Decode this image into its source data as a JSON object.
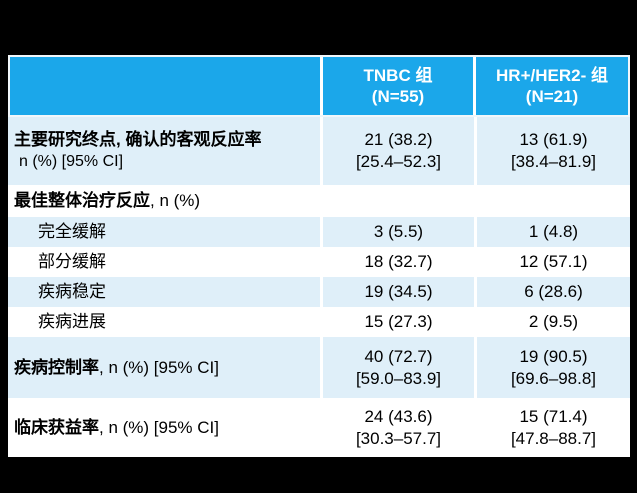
{
  "colors": {
    "page_bg": "#000000",
    "header_bg": "#1BA7EA",
    "header_text": "#FFFFFF",
    "shade_bg": "#DFEFF9",
    "text": "#000000"
  },
  "table": {
    "header": {
      "col1": "",
      "col2": {
        "line1": "TNBC 组",
        "line2": "(N=55)"
      },
      "col3": {
        "line1": "HR+/HER2- 组",
        "line2": "(N=21)"
      }
    },
    "rows": [
      {
        "bold": "主要研究终点, 确认的客观反应率",
        "plain": "",
        "suffix": "",
        "line2": "n (%) [95% CI]",
        "c2a": "21 (38.2)",
        "c2b": "[25.4–52.3]",
        "c3a": "13 (61.9)",
        "c3b": "[38.4–81.9]"
      },
      {
        "bold": "最佳整体治疗反应",
        "plain": "",
        "suffix": ", n (%)",
        "line2": "",
        "c2a": "",
        "c2b": "",
        "c3a": "",
        "c3b": ""
      },
      {
        "bold": "",
        "plain": "完全缓解",
        "suffix": "",
        "line2": "",
        "c2a": "3 (5.5)",
        "c2b": "",
        "c3a": "1 (4.8)",
        "c3b": ""
      },
      {
        "bold": "",
        "plain": "部分缓解",
        "suffix": "",
        "line2": "",
        "c2a": "18 (32.7)",
        "c2b": "",
        "c3a": "12 (57.1)",
        "c3b": ""
      },
      {
        "bold": "",
        "plain": "疾病稳定",
        "suffix": "",
        "line2": "",
        "c2a": "19 (34.5)",
        "c2b": "",
        "c3a": "6 (28.6)",
        "c3b": ""
      },
      {
        "bold": "",
        "plain": "疾病进展",
        "suffix": "",
        "line2": "",
        "c2a": "15 (27.3)",
        "c2b": "",
        "c3a": "2 (9.5)",
        "c3b": ""
      },
      {
        "bold": "疾病控制率",
        "plain": "",
        "suffix": ", n (%) [95% CI]",
        "line2": "",
        "c2a": "40 (72.7)",
        "c2b": "[59.0–83.9]",
        "c3a": "19 (90.5)",
        "c3b": "[69.6–98.8]"
      },
      {
        "bold": "临床获益率",
        "plain": "",
        "suffix": ", n (%) [95% CI]",
        "line2": "",
        "c2a": "24 (43.6)",
        "c2b": "[30.3–57.7]",
        "c3a": "15 (71.4)",
        "c3b": "[47.8–88.7]"
      }
    ]
  }
}
